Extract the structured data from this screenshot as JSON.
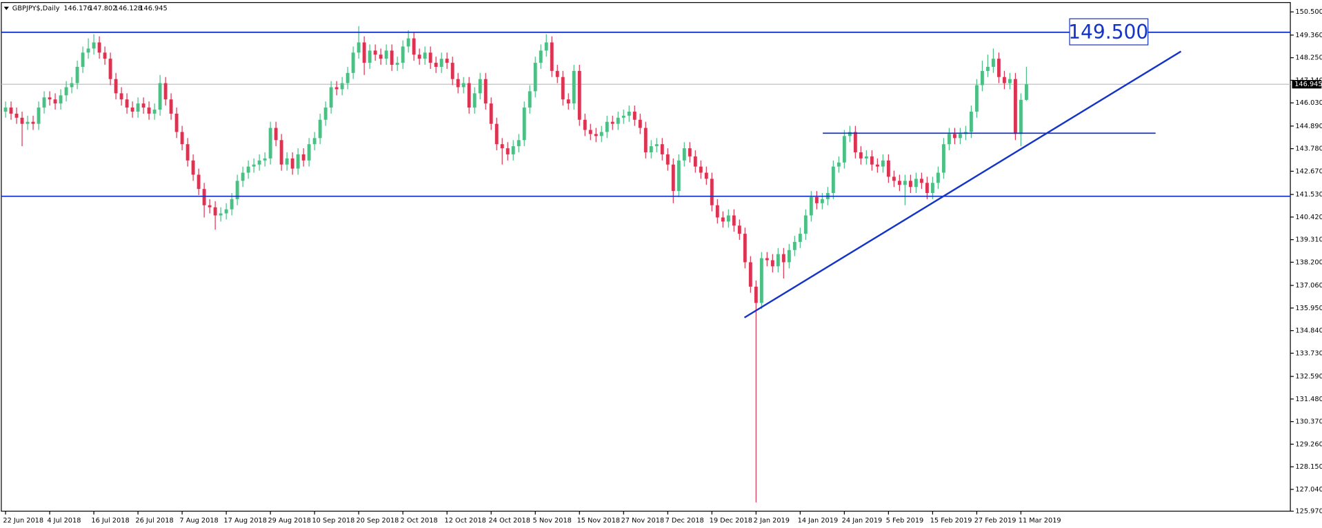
{
  "chart_data": {
    "type": "candlestick",
    "symbol": "GBPJPY$,Daily",
    "categories": [
      "22 Jun 2018",
      null,
      null,
      null,
      null,
      null,
      null,
      null,
      "4 Jul 2018",
      null,
      null,
      null,
      null,
      null,
      null,
      null,
      "16 Jul 2018",
      null,
      null,
      null,
      null,
      null,
      null,
      null,
      "26 Jul 2018",
      null,
      null,
      null,
      null,
      null,
      null,
      null,
      "7 Aug 2018",
      null,
      null,
      null,
      null,
      null,
      null,
      null,
      "17 Aug 2018",
      null,
      null,
      null,
      null,
      null,
      null,
      null,
      "29 Aug 2018",
      null,
      null,
      null,
      null,
      null,
      null,
      null,
      "10 Sep 2018",
      null,
      null,
      null,
      null,
      null,
      null,
      null,
      "20 Sep 2018",
      null,
      null,
      null,
      null,
      null,
      null,
      null,
      "2 Oct 2018",
      null,
      null,
      null,
      null,
      null,
      null,
      null,
      "12 Oct 2018",
      null,
      null,
      null,
      null,
      null,
      null,
      null,
      "24 Oct 2018",
      null,
      null,
      null,
      null,
      null,
      null,
      null,
      "5 Nov 2018",
      null,
      null,
      null,
      null,
      null,
      null,
      null,
      "15 Nov 2018",
      null,
      null,
      null,
      null,
      null,
      null,
      null,
      "27 Nov 2018",
      null,
      null,
      null,
      null,
      null,
      null,
      null,
      "7 Dec 2018",
      null,
      null,
      null,
      null,
      null,
      null,
      null,
      "19 Dec 2018",
      null,
      null,
      null,
      null,
      null,
      null,
      null,
      "2 Jan 2019",
      null,
      null,
      null,
      null,
      null,
      null,
      null,
      "14 Jan 2019",
      null,
      null,
      null,
      null,
      null,
      null,
      null,
      "24 Jan 2019",
      null,
      null,
      null,
      null,
      null,
      null,
      null,
      "5 Feb 2019",
      null,
      null,
      null,
      null,
      null,
      null,
      null,
      "15 Feb 2019",
      null,
      null,
      null,
      null,
      null,
      null,
      null,
      "27 Feb 2019",
      null,
      null,
      null,
      null,
      null,
      null,
      null,
      "11 Mar 2019",
      null
    ],
    "open": [
      145.6,
      145.8,
      145.5,
      145.3,
      145.0,
      145.1,
      145.0,
      145.8,
      146.3,
      146.2,
      146.0,
      146.4,
      146.8,
      147.0,
      147.8,
      148.5,
      148.7,
      149.0,
      148.5,
      148.2,
      147.2,
      146.5,
      146.2,
      145.8,
      145.6,
      146.0,
      145.8,
      145.5,
      145.7,
      147.0,
      146.2,
      145.5,
      144.6,
      144.0,
      143.2,
      142.5,
      141.8,
      141.0,
      140.9,
      140.5,
      140.6,
      140.8,
      141.3,
      142.2,
      142.6,
      142.9,
      143.0,
      143.2,
      143.3,
      144.8,
      144.2,
      143.0,
      143.3,
      142.8,
      143.5,
      143.2,
      144.0,
      144.3,
      145.2,
      145.8,
      146.8,
      146.7,
      147.0,
      147.5,
      148.5,
      149.0,
      148.0,
      148.6,
      148.4,
      148.2,
      148.6,
      147.9,
      148.0,
      148.8,
      149.2,
      148.4,
      148.2,
      148.5,
      148.0,
      147.8,
      148.2,
      148.0,
      147.2,
      146.8,
      147.0,
      145.8,
      146.5,
      147.2,
      146.0,
      145.0,
      144.0,
      143.8,
      143.5,
      143.9,
      144.2,
      145.8,
      146.6,
      148.0,
      148.6,
      149.0,
      147.6,
      147.3,
      146.2,
      146.0,
      147.6,
      145.2,
      144.7,
      144.5,
      144.4,
      144.6,
      145.1,
      145.0,
      145.3,
      145.4,
      145.6,
      145.2,
      144.8,
      143.6,
      143.9,
      144.0,
      143.5,
      143.0,
      141.7,
      143.2,
      143.8,
      143.4,
      142.9,
      142.6,
      142.3,
      141.0,
      140.4,
      140.2,
      140.5,
      140.0,
      139.6,
      138.2,
      137.0,
      136.2,
      138.4,
      138.3,
      138.0,
      138.6,
      138.2,
      138.8,
      139.2,
      139.6,
      140.5,
      141.4,
      141.1,
      141.3,
      141.6,
      142.9,
      143.1,
      144.4,
      144.6,
      143.6,
      143.3,
      143.4,
      143.0,
      142.9,
      143.2,
      142.4,
      142.2,
      142.0,
      142.2,
      141.9,
      142.3,
      142.1,
      141.6,
      142.1,
      142.6,
      144.0,
      144.5,
      144.3,
      144.5,
      144.6,
      145.6,
      146.9,
      147.6,
      147.8,
      148.2,
      147.3,
      147.0,
      147.2,
      144.5,
      146.176
    ],
    "high": [
      146.1,
      146.1,
      145.8,
      145.6,
      145.4,
      145.4,
      146.1,
      146.6,
      146.6,
      146.5,
      146.7,
      147.1,
      147.3,
      148.1,
      148.8,
      149.2,
      149.4,
      149.3,
      148.8,
      148.5,
      147.5,
      146.8,
      146.5,
      146.1,
      146.3,
      146.3,
      146.1,
      146.0,
      147.4,
      147.3,
      146.5,
      145.8,
      144.9,
      144.3,
      143.5,
      142.8,
      142.1,
      141.3,
      141.2,
      140.9,
      141.1,
      141.6,
      142.5,
      142.9,
      143.2,
      143.3,
      143.5,
      143.6,
      145.1,
      145.1,
      144.5,
      143.6,
      143.6,
      143.8,
      143.8,
      144.3,
      144.6,
      145.5,
      146.1,
      147.1,
      147.1,
      147.3,
      147.8,
      148.8,
      149.8,
      149.3,
      148.9,
      148.9,
      148.7,
      148.9,
      148.9,
      148.3,
      149.1,
      149.6,
      149.5,
      148.7,
      148.8,
      148.8,
      148.3,
      148.5,
      148.5,
      148.3,
      147.5,
      147.3,
      147.3,
      146.8,
      147.5,
      147.5,
      146.3,
      145.3,
      144.3,
      144.1,
      144.2,
      144.5,
      146.1,
      146.9,
      148.3,
      148.9,
      149.4,
      149.3,
      147.9,
      147.6,
      146.5,
      147.9,
      147.9,
      145.5,
      145.0,
      144.8,
      144.9,
      145.4,
      145.4,
      145.6,
      145.7,
      145.9,
      145.9,
      145.5,
      145.1,
      144.2,
      144.3,
      144.3,
      143.8,
      143.3,
      143.5,
      144.1,
      144.1,
      143.7,
      143.2,
      142.9,
      142.6,
      141.3,
      140.7,
      140.8,
      140.8,
      140.3,
      139.9,
      138.5,
      137.3,
      138.7,
      138.7,
      138.6,
      138.9,
      138.9,
      139.1,
      139.5,
      139.9,
      140.8,
      141.7,
      141.7,
      141.6,
      141.9,
      143.2,
      143.4,
      144.7,
      144.9,
      144.9,
      143.9,
      143.7,
      143.7,
      143.3,
      143.5,
      143.5,
      142.7,
      142.5,
      142.5,
      142.5,
      142.6,
      142.6,
      142.4,
      142.4,
      142.9,
      144.3,
      144.8,
      144.8,
      144.8,
      144.9,
      145.9,
      147.2,
      148.1,
      148.4,
      148.7,
      148.5,
      147.6,
      147.5,
      147.5,
      146.5,
      147.802
    ],
    "low": [
      145.3,
      145.2,
      145.0,
      143.9,
      144.7,
      144.7,
      144.7,
      145.5,
      145.9,
      145.7,
      145.7,
      146.1,
      146.5,
      146.7,
      147.5,
      148.2,
      148.4,
      148.2,
      147.9,
      146.9,
      146.2,
      145.9,
      145.5,
      145.3,
      145.3,
      145.5,
      145.2,
      145.2,
      145.4,
      145.9,
      145.2,
      144.3,
      143.7,
      142.9,
      142.2,
      141.5,
      140.4,
      140.6,
      139.8,
      140.2,
      140.3,
      140.5,
      141.0,
      141.9,
      142.3,
      142.6,
      142.7,
      142.9,
      143.0,
      143.9,
      142.7,
      142.7,
      142.5,
      142.5,
      142.9,
      142.9,
      143.7,
      144.0,
      144.9,
      145.5,
      146.4,
      146.4,
      146.7,
      147.2,
      148.2,
      147.4,
      147.7,
      148.1,
      147.9,
      147.9,
      147.6,
      147.6,
      147.7,
      148.5,
      148.1,
      147.9,
      147.9,
      147.7,
      147.5,
      147.5,
      147.7,
      146.9,
      146.5,
      146.5,
      145.5,
      145.5,
      146.2,
      145.7,
      144.7,
      143.7,
      143.0,
      143.2,
      143.2,
      143.6,
      143.9,
      145.5,
      146.3,
      147.7,
      148.3,
      147.3,
      147.0,
      145.9,
      145.7,
      145.7,
      144.9,
      144.4,
      144.2,
      144.1,
      144.1,
      144.3,
      144.7,
      144.7,
      145.0,
      145.1,
      144.9,
      144.5,
      143.3,
      143.3,
      143.6,
      143.2,
      142.7,
      141.1,
      141.4,
      142.9,
      143.1,
      142.6,
      142.3,
      142.0,
      140.7,
      140.1,
      139.9,
      139.9,
      139.7,
      139.3,
      137.9,
      136.7,
      126.4,
      135.9,
      138.0,
      137.7,
      137.7,
      137.4,
      137.9,
      138.5,
      138.9,
      139.3,
      140.2,
      140.8,
      140.8,
      141.0,
      141.3,
      142.6,
      142.8,
      144.1,
      143.3,
      143.0,
      143.0,
      142.7,
      142.6,
      142.6,
      142.1,
      141.9,
      141.7,
      141.0,
      141.6,
      141.6,
      141.8,
      141.3,
      141.3,
      141.8,
      142.3,
      143.7,
      144.0,
      144.0,
      144.2,
      144.3,
      145.3,
      146.6,
      147.3,
      147.5,
      147.0,
      146.7,
      146.7,
      144.2,
      143.9,
      146.128
    ],
    "close": [
      145.8,
      145.5,
      145.3,
      145.0,
      145.1,
      145.0,
      145.8,
      146.3,
      146.2,
      146.0,
      146.4,
      146.8,
      147.0,
      147.8,
      148.5,
      148.7,
      149.0,
      148.5,
      148.2,
      147.2,
      146.5,
      146.2,
      145.8,
      145.6,
      146.0,
      145.8,
      145.5,
      145.7,
      147.0,
      146.2,
      145.5,
      144.6,
      144.0,
      143.2,
      142.5,
      141.8,
      141.0,
      140.9,
      140.5,
      140.6,
      140.8,
      141.3,
      142.2,
      142.6,
      142.9,
      143.0,
      143.2,
      143.3,
      144.8,
      144.2,
      143.0,
      143.3,
      142.8,
      143.5,
      143.2,
      144.0,
      144.3,
      145.2,
      145.8,
      146.8,
      146.7,
      147.0,
      147.5,
      148.5,
      149.0,
      148.0,
      148.6,
      148.4,
      148.2,
      148.6,
      147.9,
      148.0,
      148.8,
      149.2,
      148.4,
      148.2,
      148.5,
      148.0,
      147.8,
      148.2,
      148.0,
      147.2,
      146.8,
      147.0,
      145.8,
      146.5,
      147.2,
      146.0,
      145.0,
      144.0,
      143.8,
      143.5,
      143.9,
      144.2,
      145.8,
      146.6,
      148.0,
      148.6,
      149.0,
      147.6,
      147.3,
      146.2,
      146.0,
      147.6,
      145.2,
      144.7,
      144.5,
      144.4,
      144.6,
      145.1,
      145.0,
      145.3,
      145.4,
      145.6,
      145.2,
      144.8,
      143.6,
      143.9,
      144.0,
      143.5,
      143.0,
      141.7,
      143.2,
      143.8,
      143.4,
      142.9,
      142.6,
      142.3,
      141.0,
      140.4,
      140.2,
      140.5,
      140.0,
      139.6,
      138.2,
      137.0,
      136.2,
      138.4,
      138.3,
      138.0,
      138.6,
      138.2,
      138.8,
      139.2,
      139.6,
      140.5,
      141.4,
      141.1,
      141.3,
      141.6,
      142.9,
      143.1,
      144.4,
      144.6,
      143.6,
      143.3,
      143.4,
      143.0,
      142.9,
      143.2,
      142.4,
      142.2,
      142.0,
      142.2,
      141.9,
      142.3,
      142.1,
      141.6,
      142.1,
      142.6,
      144.0,
      144.5,
      144.3,
      144.5,
      144.6,
      145.6,
      146.9,
      147.6,
      147.8,
      148.2,
      147.3,
      147.0,
      147.2,
      144.5,
      146.18,
      146.945
    ],
    "up_color": "#4cbf85",
    "down_color": "#dc3352",
    "ylim": [
      125.97,
      150.96
    ],
    "yticks": [
      {
        "value": 150.5,
        "label": "150.500"
      },
      {
        "value": 149.36,
        "label": "149.360"
      },
      {
        "value": 148.25,
        "label": "148.250"
      },
      {
        "value": 147.14,
        "label": "147.140"
      },
      {
        "value": 146.03,
        "label": "146.030"
      },
      {
        "value": 144.89,
        "label": "144.890"
      },
      {
        "value": 143.78,
        "label": "143.780"
      },
      {
        "value": 142.67,
        "label": "142.670"
      },
      {
        "value": 141.53,
        "label": "141.530"
      },
      {
        "value": 140.42,
        "label": "140.420"
      },
      {
        "value": 139.31,
        "label": "139.310"
      },
      {
        "value": 138.2,
        "label": "138.200"
      },
      {
        "value": 137.06,
        "label": "137.060"
      },
      {
        "value": 135.95,
        "label": "135.950"
      },
      {
        "value": 134.84,
        "label": "134.840"
      },
      {
        "value": 133.73,
        "label": "133.730"
      },
      {
        "value": 132.59,
        "label": "132.590"
      },
      {
        "value": 131.48,
        "label": "131.480"
      },
      {
        "value": 130.37,
        "label": "130.370"
      },
      {
        "value": 129.26,
        "label": "129.260"
      },
      {
        "value": 128.15,
        "label": "128.150"
      },
      {
        "value": 127.04,
        "label": "127.040"
      },
      {
        "value": 125.97,
        "label": "125.970"
      }
    ],
    "horizontal_lines": [
      149.5,
      141.44
    ],
    "line_label": "149.500",
    "segment": {
      "y": 144.54,
      "x": [
        148.1,
        208.4
      ]
    },
    "trend_line": {
      "x": [
        133.9,
        213.0
      ],
      "y": [
        135.48,
        148.56
      ]
    },
    "line_color": "#1434c8"
  }
}
